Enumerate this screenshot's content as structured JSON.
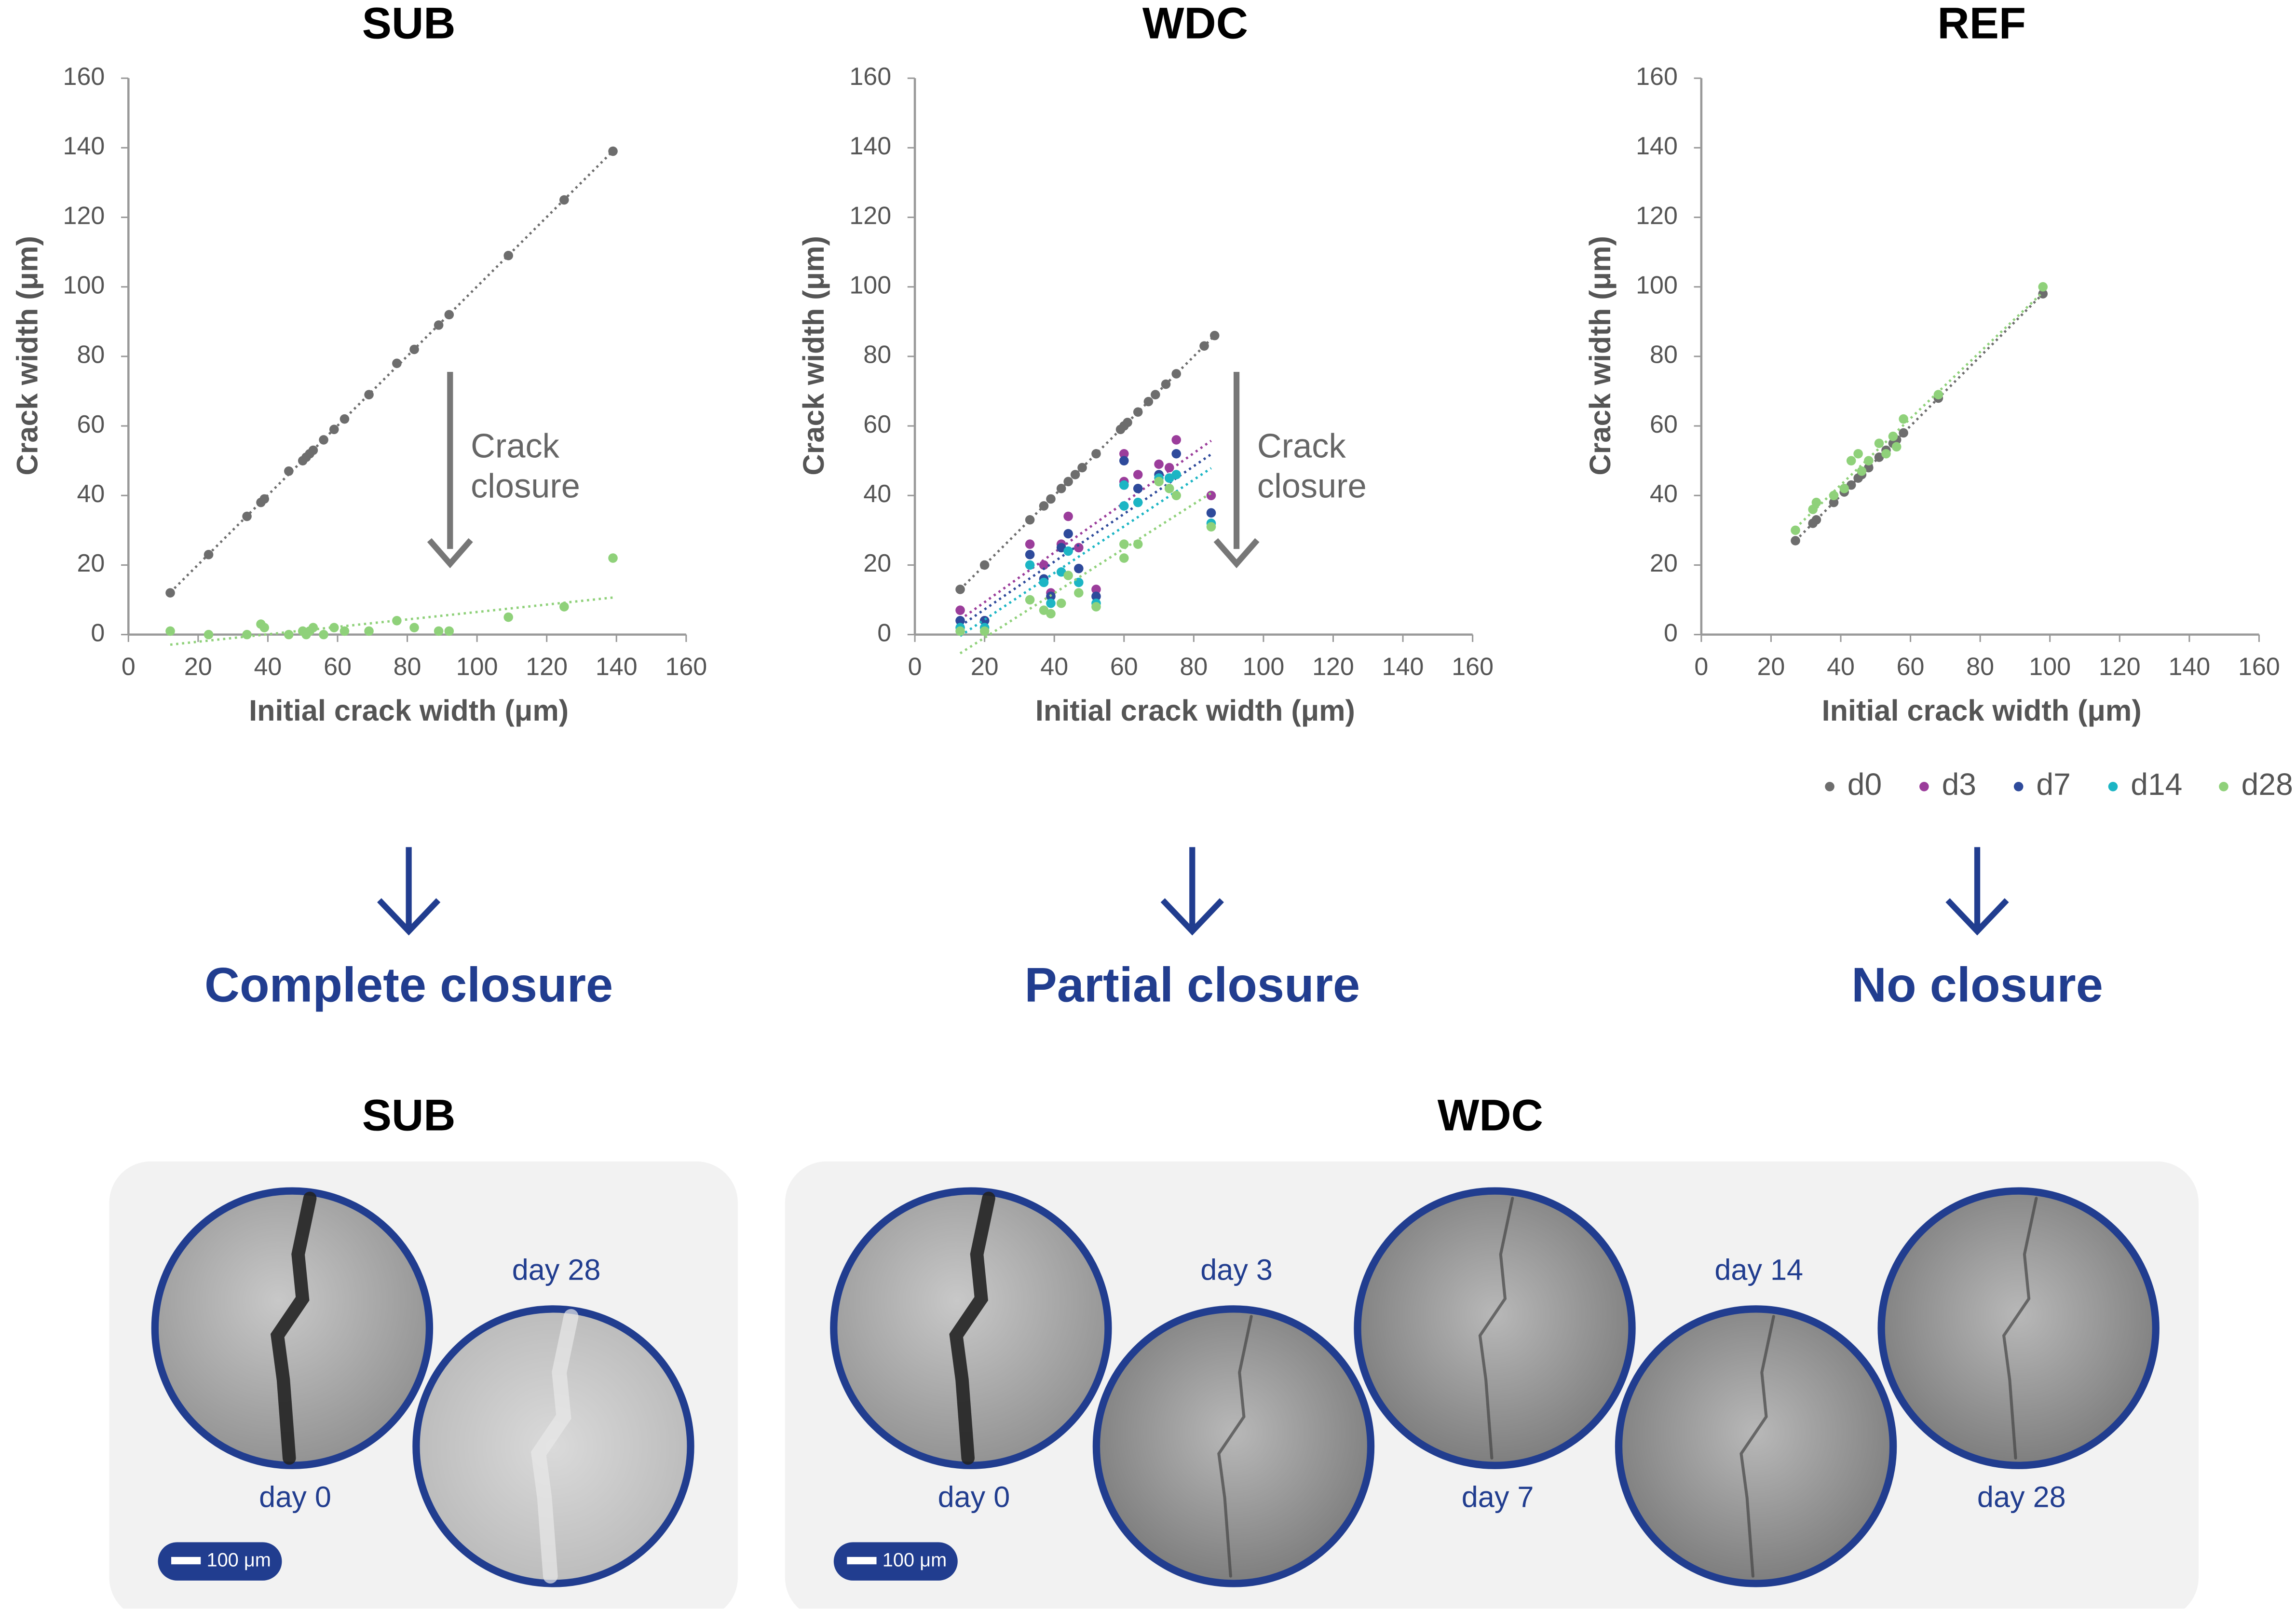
{
  "chart_data": [
    {
      "type": "scatter",
      "title": "SUB",
      "xlabel": "Initial crack width (μm)",
      "ylabel": "Crack width (μm)",
      "xlim": [
        0,
        160
      ],
      "ylim": [
        0,
        160
      ],
      "xticks": [
        0,
        20,
        40,
        60,
        80,
        100,
        120,
        140,
        160
      ],
      "yticks": [
        0,
        20,
        40,
        60,
        80,
        100,
        120,
        140,
        160
      ],
      "trendline": true,
      "annotation": [
        "Crack",
        "closure"
      ],
      "series": [
        {
          "color": "#6d6d6d",
          "x": [
            12,
            23,
            34,
            38,
            39,
            46,
            50,
            51,
            52,
            53,
            56,
            59,
            62,
            69,
            77,
            82,
            89,
            92,
            109,
            125,
            139
          ],
          "values": [
            12,
            23,
            34,
            38,
            39,
            47,
            50,
            51,
            52,
            53,
            56,
            59,
            62,
            69,
            78,
            82,
            89,
            92,
            109,
            125,
            139
          ]
        },
        {
          "color": "#8fd17a",
          "x": [
            12,
            23,
            34,
            38,
            39,
            46,
            50,
            51,
            52,
            53,
            56,
            59,
            62,
            69,
            77,
            82,
            89,
            92,
            109,
            125,
            139
          ],
          "values": [
            1,
            0,
            0,
            3,
            2,
            0,
            1,
            0,
            1,
            2,
            0,
            2,
            1,
            1,
            4,
            2,
            1,
            1,
            5,
            8,
            22
          ]
        }
      ]
    },
    {
      "type": "scatter",
      "title": "WDC",
      "xlabel": "Initial crack width (μm)",
      "ylabel": "Crack width (μm)",
      "xlim": [
        0,
        160
      ],
      "ylim": [
        0,
        160
      ],
      "xticks": [
        0,
        20,
        40,
        60,
        80,
        100,
        120,
        140,
        160
      ],
      "yticks": [
        0,
        20,
        40,
        60,
        80,
        100,
        120,
        140,
        160
      ],
      "trendline": true,
      "annotation": [
        "Crack",
        "closure"
      ],
      "series": [
        {
          "name": "d0",
          "color": "#6d6d6d",
          "x": [
            13,
            20,
            33,
            37,
            39,
            42,
            44,
            46,
            48,
            52,
            59,
            60,
            61,
            64,
            67,
            69,
            72,
            75,
            83,
            86
          ],
          "values": [
            13,
            20,
            33,
            37,
            39,
            42,
            44,
            46,
            48,
            52,
            59,
            60,
            61,
            64,
            67,
            69,
            72,
            75,
            83,
            86
          ]
        },
        {
          "name": "d3",
          "color": "#9b3d9b",
          "x": [
            13,
            20,
            33,
            37,
            39,
            42,
            44,
            47,
            52,
            60,
            60,
            64,
            70,
            73,
            75,
            85
          ],
          "values": [
            7,
            4,
            26,
            20,
            12,
            26,
            34,
            25,
            13,
            44,
            52,
            46,
            49,
            48,
            56,
            40
          ]
        },
        {
          "name": "d7",
          "color": "#2e4a9b",
          "x": [
            13,
            20,
            33,
            37,
            39,
            42,
            44,
            47,
            52,
            60,
            60,
            64,
            70,
            73,
            75,
            85
          ],
          "values": [
            4,
            4,
            23,
            16,
            11,
            25,
            29,
            19,
            11,
            43,
            50,
            42,
            46,
            45,
            52,
            35
          ]
        },
        {
          "name": "d14",
          "color": "#1cb5c4",
          "x": [
            13,
            20,
            33,
            37,
            39,
            42,
            44,
            47,
            52,
            60,
            60,
            64,
            70,
            73,
            75,
            85
          ],
          "values": [
            2,
            2,
            20,
            15,
            9,
            18,
            24,
            15,
            9,
            37,
            43,
            38,
            45,
            45,
            46,
            32
          ]
        },
        {
          "name": "d28",
          "color": "#8fd17a",
          "x": [
            13,
            20,
            33,
            37,
            39,
            42,
            44,
            47,
            52,
            60,
            60,
            64,
            70,
            73,
            75,
            85
          ],
          "values": [
            1,
            1,
            10,
            7,
            6,
            9,
            17,
            12,
            8,
            22,
            26,
            26,
            44,
            42,
            40,
            31
          ]
        }
      ]
    },
    {
      "type": "scatter",
      "title": "REF",
      "xlabel": "Initial crack width (μm)",
      "ylabel": "Crack width (μm)",
      "xlim": [
        0,
        160
      ],
      "ylim": [
        0,
        160
      ],
      "xticks": [
        0,
        20,
        40,
        60,
        80,
        100,
        120,
        140,
        160
      ],
      "yticks": [
        0,
        20,
        40,
        60,
        80,
        100,
        120,
        140,
        160
      ],
      "trendline": true,
      "series": [
        {
          "color": "#6d6d6d",
          "x": [
            27,
            32,
            33,
            38,
            41,
            43,
            45,
            46,
            48,
            51,
            53,
            55,
            56,
            58,
            68,
            98
          ],
          "values": [
            27,
            32,
            33,
            38,
            41,
            43,
            45,
            46,
            48,
            51,
            53,
            55,
            56,
            58,
            68,
            98
          ]
        },
        {
          "color": "#8fd17a",
          "x": [
            27,
            32,
            33,
            38,
            41,
            43,
            45,
            46,
            48,
            51,
            53,
            55,
            56,
            58,
            68,
            98
          ],
          "values": [
            30,
            36,
            38,
            40,
            42,
            50,
            52,
            47,
            50,
            55,
            52,
            57,
            54,
            62,
            69,
            100
          ]
        }
      ]
    }
  ],
  "outcomes": [
    "Complete closure",
    "Partial closure",
    "No closure"
  ],
  "micrographs": [
    {
      "title": "SUB",
      "scale_bar": "100 μm",
      "images": [
        {
          "label": "day 0"
        },
        {
          "label": "day 28"
        }
      ]
    },
    {
      "title": "WDC",
      "scale_bar": "100 μm",
      "images": [
        {
          "label": "day 0"
        },
        {
          "label": "day 3"
        },
        {
          "label": "day 7"
        },
        {
          "label": "day 14"
        },
        {
          "label": "day 28"
        }
      ]
    }
  ]
}
